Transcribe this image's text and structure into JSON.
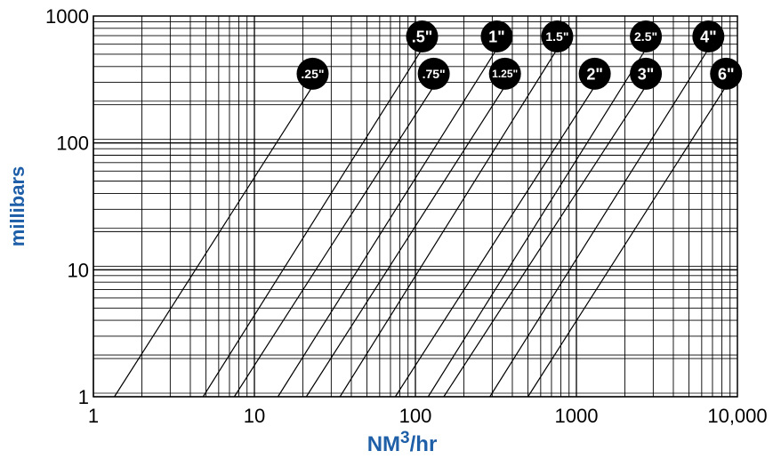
{
  "chart_data": {
    "type": "line",
    "title": "",
    "xlabel": {
      "main": "NM",
      "sup": "3",
      "rest": "/hr"
    },
    "ylabel": "millibars",
    "xscale": "log",
    "yscale": "log",
    "xlim": [
      1,
      10000
    ],
    "ylim": [
      1,
      1000
    ],
    "grid": true,
    "x_tick_labels": [
      "1",
      "10",
      "100",
      "1000",
      "10,000"
    ],
    "y_tick_labels": [
      "1",
      "10",
      "100",
      "1000"
    ],
    "series": [
      {
        "name": ".25\"",
        "x": [
          1.35,
          23
        ],
        "y": [
          1,
          280
        ]
      },
      {
        "name": ".5\"",
        "x": [
          4.8,
          110
        ],
        "y": [
          1,
          550
        ]
      },
      {
        "name": ".75\"",
        "x": [
          7.5,
          130
        ],
        "y": [
          1,
          280
        ]
      },
      {
        "name": "1\"",
        "x": [
          14,
          320
        ],
        "y": [
          1,
          550
        ]
      },
      {
        "name": "1.25\"",
        "x": [
          21,
          360
        ],
        "y": [
          1,
          280
        ]
      },
      {
        "name": "1.5\"",
        "x": [
          34,
          760
        ],
        "y": [
          1,
          550
        ]
      },
      {
        "name": "2\"",
        "x": [
          75,
          1300
        ],
        "y": [
          1,
          280
        ]
      },
      {
        "name": "2.5\"",
        "x": [
          120,
          2700
        ],
        "y": [
          1,
          550
        ]
      },
      {
        "name": "3\"",
        "x": [
          150,
          2700
        ],
        "y": [
          1,
          280
        ]
      },
      {
        "name": "4\"",
        "x": [
          290,
          6600
        ],
        "y": [
          1,
          550
        ]
      },
      {
        "name": "6\"",
        "x": [
          500,
          8500
        ],
        "y": [
          1,
          280
        ]
      }
    ]
  }
}
